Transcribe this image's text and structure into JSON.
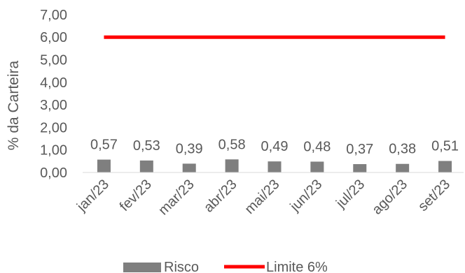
{
  "chart_data": {
    "type": "bar",
    "categories": [
      "jan/23",
      "fev/23",
      "mar/23",
      "abr/23",
      "mai/23",
      "jun/23",
      "jul/23",
      "ago/23",
      "set/23"
    ],
    "series": [
      {
        "name": "Risco",
        "type": "bar",
        "color": "#7f7f7f",
        "values": [
          0.57,
          0.53,
          0.39,
          0.58,
          0.49,
          0.48,
          0.37,
          0.38,
          0.51
        ],
        "data_labels": [
          "0,57",
          "0,53",
          "0,39",
          "0,58",
          "0,49",
          "0,48",
          "0,37",
          "0,38",
          "0,51"
        ]
      },
      {
        "name": "Limite 6%",
        "type": "line",
        "color": "#ff0000",
        "values": [
          6,
          6,
          6,
          6,
          6,
          6,
          6,
          6,
          6
        ]
      }
    ],
    "ylabel": "% da Carteira",
    "xlabel": "",
    "title": "",
    "ylim": [
      0,
      7
    ],
    "yticks": [
      0,
      1,
      2,
      3,
      4,
      5,
      6,
      7
    ],
    "ytick_labels": [
      "0,00",
      "1,00",
      "2,00",
      "3,00",
      "4,00",
      "5,00",
      "6,00",
      "7,00"
    ],
    "grid": false,
    "legend": "bottom"
  }
}
